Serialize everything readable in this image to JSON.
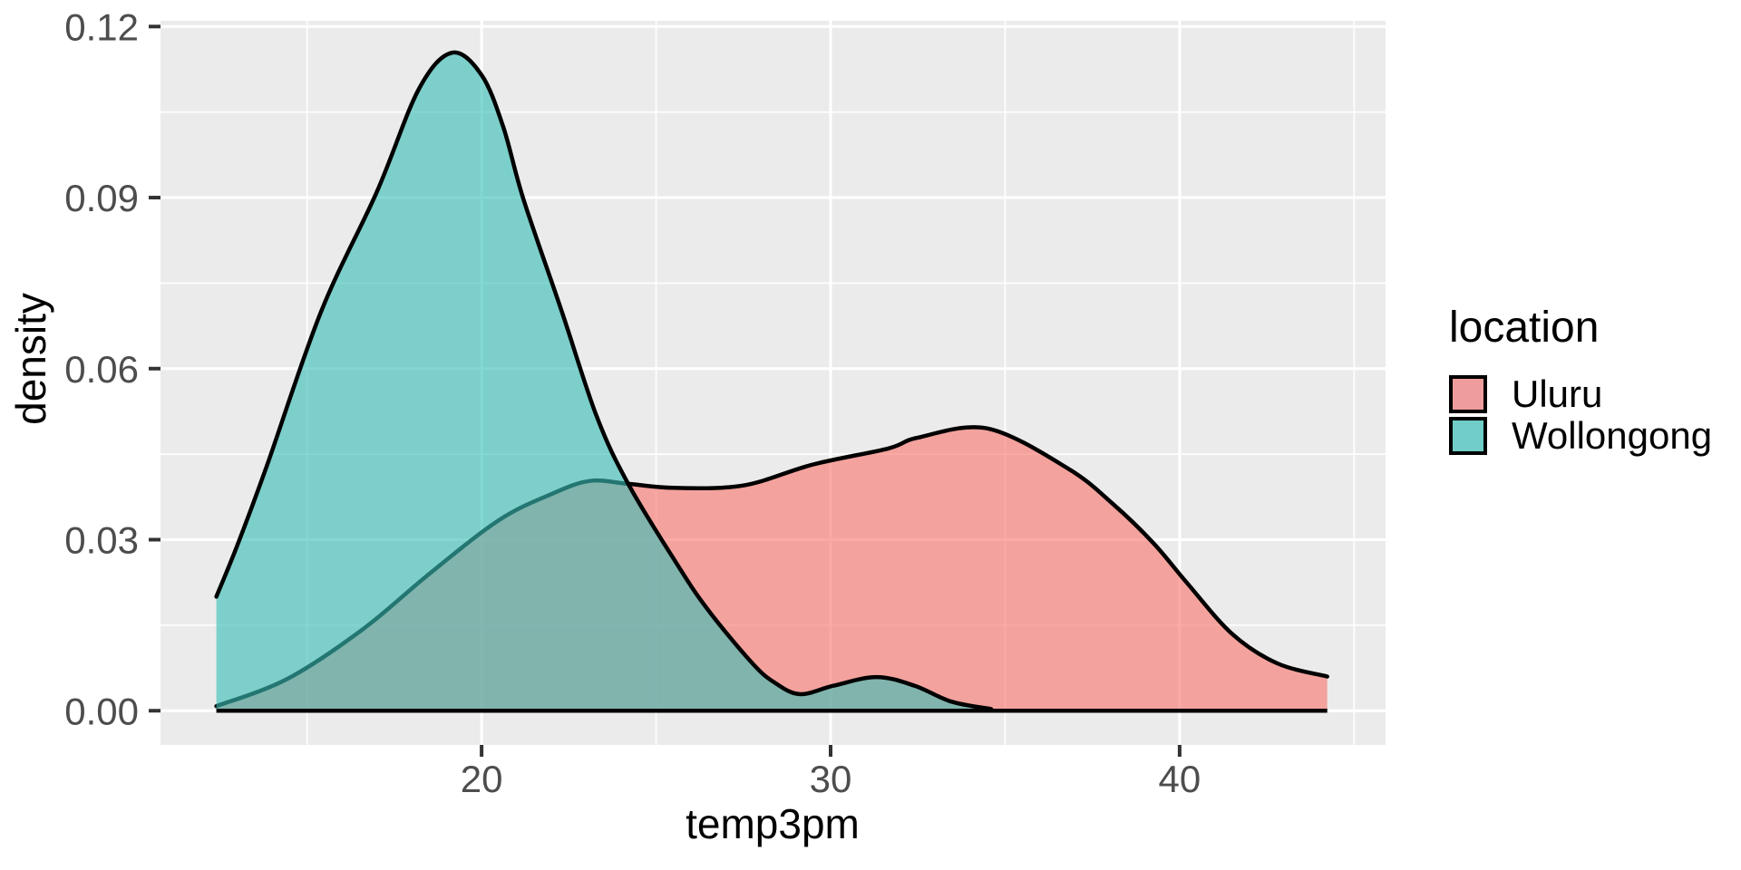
{
  "chart_data": {
    "type": "area",
    "subtype": "kernel-density",
    "title": "",
    "xlabel": "temp3pm",
    "ylabel": "density",
    "grid": true,
    "legend_position": "right",
    "panel_bg": "#EBEBEB",
    "grid_color": "#FFFFFF",
    "tick_color": "#333333",
    "axis_text_color": "#4D4D4D",
    "baseline_stroke": "#000000",
    "xlim": [
      10.8,
      45.9
    ],
    "ylim": [
      -0.006,
      0.121
    ],
    "x_major_ticks": [
      20,
      30,
      40
    ],
    "x_tick_labels": [
      "20",
      "30",
      "40"
    ],
    "x_minor_ticks": [
      15,
      25,
      35,
      45
    ],
    "y_major_ticks": [
      0,
      0.03,
      0.06,
      0.09,
      0.12
    ],
    "y_tick_labels": [
      "0.00",
      "0.03",
      "0.06",
      "0.09",
      "0.12"
    ],
    "y_minor_ticks": [
      0.015,
      0.045,
      0.075,
      0.105
    ],
    "series": [
      {
        "name": "Uluru",
        "fill": "rgba(248,118,109,0.62)",
        "stroke": "#000000",
        "stroke_width": 4.5,
        "points": [
          [
            12.4,
            0.0008
          ],
          [
            14.44,
            0.0056
          ],
          [
            16.6,
            0.0143
          ],
          [
            18.5,
            0.024
          ],
          [
            20.49,
            0.0334
          ],
          [
            22.0,
            0.038
          ],
          [
            23.1,
            0.0403
          ],
          [
            24.2,
            0.0398
          ],
          [
            25.5,
            0.0391
          ],
          [
            27.5,
            0.0395
          ],
          [
            29.5,
            0.0432
          ],
          [
            31.65,
            0.046
          ],
          [
            32.5,
            0.0479
          ],
          [
            34.5,
            0.0495
          ],
          [
            36.8,
            0.0425
          ],
          [
            38.1,
            0.0362
          ],
          [
            39.25,
            0.0294
          ],
          [
            40.2,
            0.0225
          ],
          [
            41.5,
            0.0135
          ],
          [
            42.8,
            0.0083
          ],
          [
            44.23,
            0.006
          ]
        ]
      },
      {
        "name": "Wollongong",
        "fill": "rgba(56,190,183,0.62)",
        "stroke": "#000000",
        "stroke_width": 4.5,
        "points": [
          [
            12.4,
            0.02
          ],
          [
            13.0,
            0.029
          ],
          [
            13.85,
            0.043
          ],
          [
            15.4,
            0.07
          ],
          [
            17.0,
            0.091
          ],
          [
            18.2,
            0.109
          ],
          [
            19.15,
            0.1154
          ],
          [
            20.0,
            0.1115
          ],
          [
            20.62,
            0.1024
          ],
          [
            21.2,
            0.0897
          ],
          [
            22.3,
            0.07
          ],
          [
            23.3,
            0.0516
          ],
          [
            24.2,
            0.0398
          ],
          [
            25.55,
            0.0262
          ],
          [
            26.46,
            0.0179
          ],
          [
            27.76,
            0.0083
          ],
          [
            28.43,
            0.0048
          ],
          [
            29.13,
            0.0029
          ],
          [
            30.09,
            0.0044
          ],
          [
            31.31,
            0.0059
          ],
          [
            32.4,
            0.0044
          ],
          [
            33.46,
            0.0016
          ],
          [
            34.6,
            0.0003
          ]
        ]
      }
    ]
  },
  "legend": {
    "title": "location",
    "items": [
      {
        "label": "Uluru",
        "color": "#EE9C9C"
      },
      {
        "label": "Wollongong",
        "color": "#71CDC9"
      }
    ]
  }
}
